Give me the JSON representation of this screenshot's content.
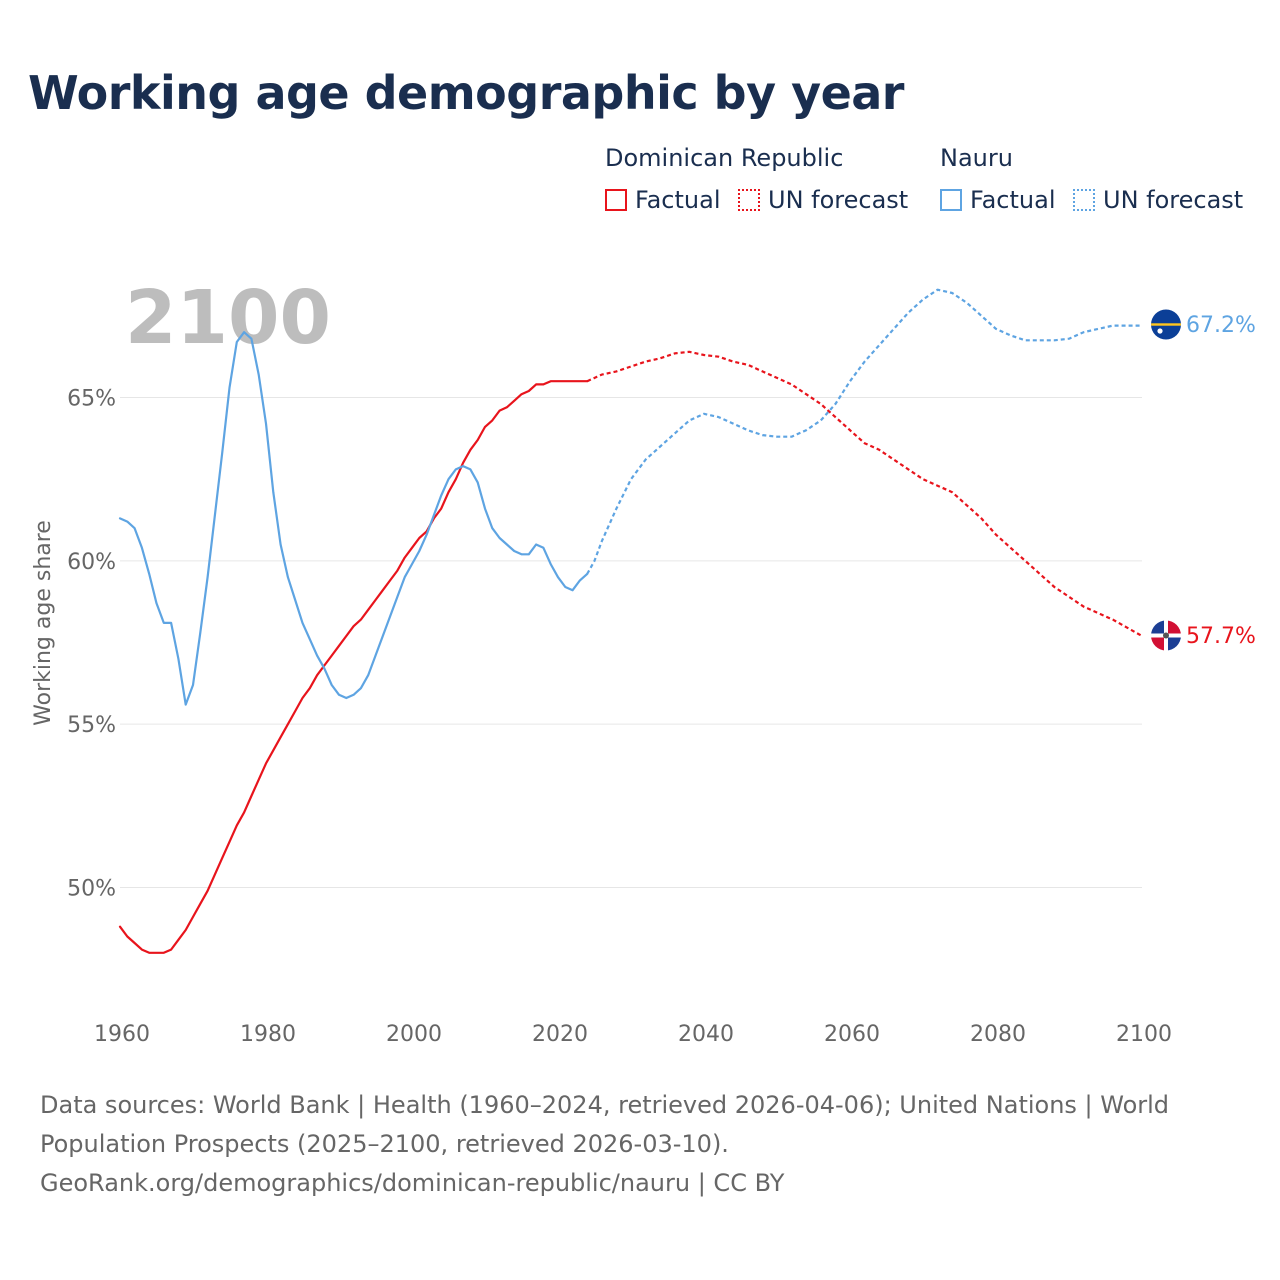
{
  "title": "Working age demographic by year",
  "legend": [
    {
      "group": "Dominican Republic",
      "color": "#e8141c",
      "items": [
        {
          "label": "Factual",
          "style": "solid"
        },
        {
          "label": "UN forecast",
          "style": "dotted"
        }
      ]
    },
    {
      "group": "Nauru",
      "color": "#5ea4e2",
      "items": [
        {
          "label": "Factual",
          "style": "solid"
        },
        {
          "label": "UN forecast",
          "style": "dotted"
        }
      ]
    }
  ],
  "chart_data": {
    "type": "line",
    "title": "Working age demographic by year",
    "xlabel": "",
    "ylabel": "Working age share",
    "xlim": [
      1960,
      2100
    ],
    "ylim": [
      46.5,
      68.5
    ],
    "x_ticks": [
      1960,
      1980,
      2000,
      2020,
      2040,
      2060,
      2080,
      2100
    ],
    "x_tick_labels": [
      "1960",
      "1980",
      "2000",
      "2020",
      "2040",
      "2060",
      "2080",
      "2100"
    ],
    "y_ticks": [
      50,
      55,
      60,
      65
    ],
    "y_tick_labels": [
      "50%",
      "55%",
      "60%",
      "65%"
    ],
    "grid": "horizontal",
    "year_watermark": "2100",
    "forecast_start": 2024,
    "series": [
      {
        "name": "Dominican Republic",
        "color": "#e8141c",
        "end_label": "57.7%",
        "points": [
          [
            1960,
            48.8
          ],
          [
            1961,
            48.5
          ],
          [
            1962,
            48.3
          ],
          [
            1963,
            48.1
          ],
          [
            1964,
            48.0
          ],
          [
            1965,
            48.0
          ],
          [
            1966,
            48.0
          ],
          [
            1967,
            48.1
          ],
          [
            1968,
            48.4
          ],
          [
            1969,
            48.7
          ],
          [
            1970,
            49.1
          ],
          [
            1971,
            49.5
          ],
          [
            1972,
            49.9
          ],
          [
            1973,
            50.4
          ],
          [
            1974,
            50.9
          ],
          [
            1975,
            51.4
          ],
          [
            1976,
            51.9
          ],
          [
            1977,
            52.3
          ],
          [
            1978,
            52.8
          ],
          [
            1979,
            53.3
          ],
          [
            1980,
            53.8
          ],
          [
            1981,
            54.2
          ],
          [
            1982,
            54.6
          ],
          [
            1983,
            55.0
          ],
          [
            1984,
            55.4
          ],
          [
            1985,
            55.8
          ],
          [
            1986,
            56.1
          ],
          [
            1987,
            56.5
          ],
          [
            1988,
            56.8
          ],
          [
            1989,
            57.1
          ],
          [
            1990,
            57.4
          ],
          [
            1991,
            57.7
          ],
          [
            1992,
            58.0
          ],
          [
            1993,
            58.2
          ],
          [
            1994,
            58.5
          ],
          [
            1995,
            58.8
          ],
          [
            1996,
            59.1
          ],
          [
            1997,
            59.4
          ],
          [
            1998,
            59.7
          ],
          [
            1999,
            60.1
          ],
          [
            2000,
            60.4
          ],
          [
            2001,
            60.7
          ],
          [
            2002,
            60.9
          ],
          [
            2003,
            61.3
          ],
          [
            2004,
            61.6
          ],
          [
            2005,
            62.1
          ],
          [
            2006,
            62.5
          ],
          [
            2007,
            63.0
          ],
          [
            2008,
            63.4
          ],
          [
            2009,
            63.7
          ],
          [
            2010,
            64.1
          ],
          [
            2011,
            64.3
          ],
          [
            2012,
            64.6
          ],
          [
            2013,
            64.7
          ],
          [
            2014,
            64.9
          ],
          [
            2015,
            65.1
          ],
          [
            2016,
            65.2
          ],
          [
            2017,
            65.4
          ],
          [
            2018,
            65.4
          ],
          [
            2019,
            65.5
          ],
          [
            2020,
            65.5
          ],
          [
            2021,
            65.5
          ],
          [
            2022,
            65.5
          ],
          [
            2023,
            65.5
          ],
          [
            2024,
            65.5
          ],
          [
            2026,
            65.7
          ],
          [
            2028,
            65.8
          ],
          [
            2030,
            65.95
          ],
          [
            2032,
            66.1
          ],
          [
            2034,
            66.2
          ],
          [
            2036,
            66.35
          ],
          [
            2038,
            66.4
          ],
          [
            2040,
            66.3
          ],
          [
            2042,
            66.25
          ],
          [
            2044,
            66.1
          ],
          [
            2046,
            66.0
          ],
          [
            2048,
            65.8
          ],
          [
            2050,
            65.6
          ],
          [
            2052,
            65.4
          ],
          [
            2054,
            65.1
          ],
          [
            2056,
            64.8
          ],
          [
            2058,
            64.4
          ],
          [
            2060,
            64.0
          ],
          [
            2062,
            63.6
          ],
          [
            2064,
            63.4
          ],
          [
            2066,
            63.1
          ],
          [
            2068,
            62.8
          ],
          [
            2070,
            62.5
          ],
          [
            2072,
            62.3
          ],
          [
            2074,
            62.1
          ],
          [
            2076,
            61.7
          ],
          [
            2078,
            61.3
          ],
          [
            2080,
            60.8
          ],
          [
            2082,
            60.4
          ],
          [
            2084,
            60.0
          ],
          [
            2086,
            59.6
          ],
          [
            2088,
            59.2
          ],
          [
            2090,
            58.9
          ],
          [
            2092,
            58.6
          ],
          [
            2094,
            58.4
          ],
          [
            2096,
            58.2
          ],
          [
            2098,
            57.95
          ],
          [
            2100,
            57.7
          ]
        ]
      },
      {
        "name": "Nauru",
        "color": "#5ea4e2",
        "end_label": "67.2%",
        "points": [
          [
            1960,
            61.3
          ],
          [
            1961,
            61.2
          ],
          [
            1962,
            61.0
          ],
          [
            1963,
            60.4
          ],
          [
            1964,
            59.6
          ],
          [
            1965,
            58.7
          ],
          [
            1966,
            58.1
          ],
          [
            1967,
            58.1
          ],
          [
            1968,
            57.0
          ],
          [
            1969,
            55.6
          ],
          [
            1970,
            56.2
          ],
          [
            1971,
            57.8
          ],
          [
            1972,
            59.5
          ],
          [
            1973,
            61.4
          ],
          [
            1974,
            63.3
          ],
          [
            1975,
            65.3
          ],
          [
            1976,
            66.7
          ],
          [
            1977,
            67.0
          ],
          [
            1978,
            66.8
          ],
          [
            1979,
            65.7
          ],
          [
            1980,
            64.2
          ],
          [
            1981,
            62.1
          ],
          [
            1982,
            60.5
          ],
          [
            1983,
            59.5
          ],
          [
            1984,
            58.8
          ],
          [
            1985,
            58.1
          ],
          [
            1986,
            57.6
          ],
          [
            1987,
            57.1
          ],
          [
            1988,
            56.7
          ],
          [
            1989,
            56.2
          ],
          [
            1990,
            55.9
          ],
          [
            1991,
            55.8
          ],
          [
            1992,
            55.9
          ],
          [
            1993,
            56.1
          ],
          [
            1994,
            56.5
          ],
          [
            1995,
            57.1
          ],
          [
            1996,
            57.7
          ],
          [
            1997,
            58.3
          ],
          [
            1998,
            58.9
          ],
          [
            1999,
            59.5
          ],
          [
            2000,
            59.9
          ],
          [
            2001,
            60.3
          ],
          [
            2002,
            60.8
          ],
          [
            2003,
            61.4
          ],
          [
            2004,
            62.0
          ],
          [
            2005,
            62.5
          ],
          [
            2006,
            62.8
          ],
          [
            2007,
            62.9
          ],
          [
            2008,
            62.8
          ],
          [
            2009,
            62.4
          ],
          [
            2010,
            61.6
          ],
          [
            2011,
            61.0
          ],
          [
            2012,
            60.7
          ],
          [
            2013,
            60.5
          ],
          [
            2014,
            60.3
          ],
          [
            2015,
            60.2
          ],
          [
            2016,
            60.2
          ],
          [
            2017,
            60.5
          ],
          [
            2018,
            60.4
          ],
          [
            2019,
            59.9
          ],
          [
            2020,
            59.5
          ],
          [
            2021,
            59.2
          ],
          [
            2022,
            59.1
          ],
          [
            2023,
            59.4
          ],
          [
            2024,
            59.6
          ],
          [
            2025,
            60.0
          ],
          [
            2026,
            60.6
          ],
          [
            2028,
            61.6
          ],
          [
            2030,
            62.5
          ],
          [
            2032,
            63.1
          ],
          [
            2034,
            63.5
          ],
          [
            2036,
            63.9
          ],
          [
            2038,
            64.3
          ],
          [
            2040,
            64.5
          ],
          [
            2042,
            64.4
          ],
          [
            2044,
            64.2
          ],
          [
            2046,
            64.0
          ],
          [
            2048,
            63.85
          ],
          [
            2050,
            63.8
          ],
          [
            2052,
            63.8
          ],
          [
            2054,
            64.0
          ],
          [
            2056,
            64.3
          ],
          [
            2058,
            64.8
          ],
          [
            2060,
            65.5
          ],
          [
            2062,
            66.1
          ],
          [
            2064,
            66.6
          ],
          [
            2066,
            67.1
          ],
          [
            2068,
            67.6
          ],
          [
            2070,
            68.0
          ],
          [
            2072,
            68.3
          ],
          [
            2074,
            68.2
          ],
          [
            2076,
            67.9
          ],
          [
            2078,
            67.5
          ],
          [
            2080,
            67.1
          ],
          [
            2082,
            66.9
          ],
          [
            2084,
            66.75
          ],
          [
            2086,
            66.75
          ],
          [
            2088,
            66.75
          ],
          [
            2090,
            66.8
          ],
          [
            2092,
            67.0
          ],
          [
            2094,
            67.1
          ],
          [
            2096,
            67.2
          ],
          [
            2098,
            67.2
          ],
          [
            2100,
            67.2
          ]
        ]
      }
    ]
  },
  "sources": {
    "line1": "Data sources: World Bank | Health (1960–2024, retrieved 2026-04-06); United Nations | World",
    "line2": "Population Prospects (2025–2100, retrieved 2026-03-10).",
    "line3": "GeoRank.org/demographics/dominican-republic/nauru | CC BY"
  }
}
